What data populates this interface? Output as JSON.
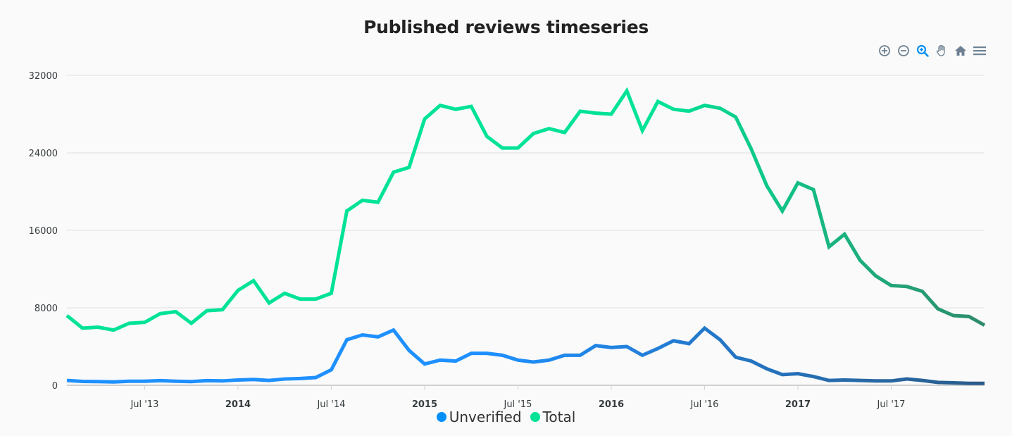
{
  "chart_data": {
    "type": "line",
    "title": "Published reviews timeseries",
    "x": [
      "2013-02",
      "2013-03",
      "2013-04",
      "2013-05",
      "2013-06",
      "2013-07",
      "2013-08",
      "2013-09",
      "2013-10",
      "2013-11",
      "2013-12",
      "2014-01",
      "2014-02",
      "2014-03",
      "2014-04",
      "2014-05",
      "2014-06",
      "2014-07",
      "2014-08",
      "2014-09",
      "2014-10",
      "2014-11",
      "2014-12",
      "2015-01",
      "2015-02",
      "2015-03",
      "2015-04",
      "2015-05",
      "2015-06",
      "2015-07",
      "2015-08",
      "2015-09",
      "2015-10",
      "2015-11",
      "2015-12",
      "2016-01",
      "2016-02",
      "2016-03",
      "2016-04",
      "2016-05",
      "2016-06",
      "2016-07",
      "2016-08",
      "2016-09",
      "2016-10",
      "2016-11",
      "2016-12",
      "2017-01",
      "2017-02",
      "2017-03",
      "2017-04",
      "2017-05",
      "2017-06",
      "2017-07",
      "2017-08",
      "2017-09",
      "2017-10",
      "2017-11",
      "2017-12",
      "2018-01"
    ],
    "series": [
      {
        "name": "Unverified",
        "values": [
          500,
          400,
          380,
          350,
          420,
          420,
          480,
          420,
          380,
          480,
          450,
          550,
          600,
          500,
          650,
          700,
          800,
          1600,
          4700,
          5200,
          5000,
          5700,
          3600,
          2200,
          2600,
          2500,
          3300,
          3300,
          3100,
          2600,
          2400,
          2600,
          3100,
          3100,
          4100,
          3900,
          4000,
          3100,
          3800,
          4600,
          4300,
          5900,
          4700,
          2900,
          2500,
          1700,
          1100,
          1200,
          900,
          500,
          550,
          500,
          450,
          450,
          650,
          500,
          300,
          250,
          200,
          200
        ]
      },
      {
        "name": "Total",
        "values": [
          7200,
          5900,
          6000,
          5700,
          6400,
          6500,
          7400,
          7600,
          6400,
          7700,
          7800,
          9800,
          10800,
          8500,
          9500,
          8900,
          8900,
          9500,
          18000,
          19100,
          18900,
          22000,
          22500,
          27500,
          28900,
          28500,
          28800,
          25700,
          24500,
          24500,
          26000,
          26500,
          26100,
          28300,
          28100,
          28000,
          30400,
          26300,
          29300,
          28500,
          28300,
          28900,
          28600,
          27700,
          24400,
          20600,
          18000,
          20900,
          20200,
          14300,
          15600,
          12900,
          11300,
          10300,
          10200,
          9700,
          7900,
          7200,
          7100,
          6200
        ]
      }
    ],
    "y_ticks": [
      "0",
      "8000",
      "16000",
      "24000",
      "32000"
    ],
    "ylim": [
      0,
      32000
    ],
    "x_ticks": [
      {
        "label": "Jul '13",
        "at": "2013-07",
        "bold": false
      },
      {
        "label": "2014",
        "at": "2014-01",
        "bold": true
      },
      {
        "label": "Jul '14",
        "at": "2014-07",
        "bold": false
      },
      {
        "label": "2015",
        "at": "2015-01",
        "bold": true
      },
      {
        "label": "Jul '15",
        "at": "2015-07",
        "bold": false
      },
      {
        "label": "2016",
        "at": "2016-01",
        "bold": true
      },
      {
        "label": "Jul '16",
        "at": "2016-07",
        "bold": false
      },
      {
        "label": "2017",
        "at": "2017-01",
        "bold": true
      },
      {
        "label": "Jul '17",
        "at": "2017-07",
        "bold": false
      }
    ],
    "grid": true,
    "legend_position": "bottom-center",
    "colors": {
      "unverified_start": "#1e90ff",
      "unverified_end": "#2a5c8a",
      "total_start": "#00e396",
      "total_end": "#2e8b6a",
      "unverified_legend": "#008ffb",
      "total_legend": "#00e396"
    }
  },
  "toolbar": {
    "icons": [
      "zoom-in-icon",
      "zoom-out-icon",
      "selection-zoom-icon",
      "pan-hand-icon",
      "reset-home-icon",
      "menu-icon"
    ]
  }
}
